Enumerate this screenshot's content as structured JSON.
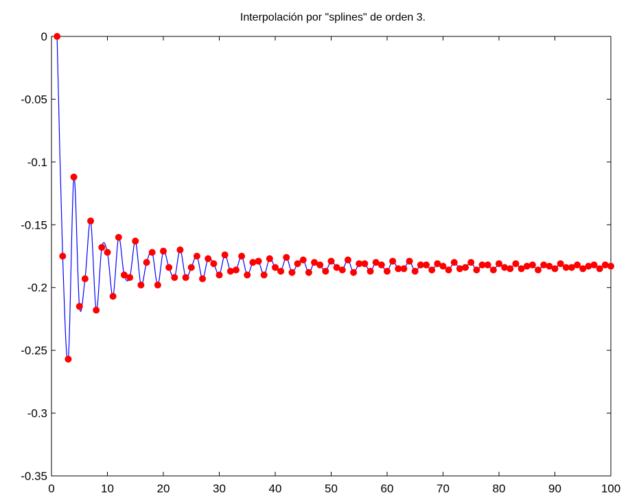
{
  "chart_data": {
    "type": "line",
    "title": "Interpolación por \"splines\" de orden 3.",
    "xlabel": "",
    "ylabel": "",
    "xlim": [
      0,
      100
    ],
    "ylim": [
      -0.35,
      0
    ],
    "grid": false,
    "legend": "none",
    "x_ticks": [
      0,
      10,
      20,
      30,
      40,
      50,
      60,
      70,
      80,
      90,
      100
    ],
    "x_tick_labels": [
      "0",
      "10",
      "20",
      "30",
      "40",
      "50",
      "60",
      "70",
      "80",
      "90",
      "100"
    ],
    "y_ticks": [
      0,
      -0.05,
      -0.1,
      -0.15,
      -0.2,
      -0.25,
      -0.3,
      -0.35
    ],
    "y_tick_labels": [
      "0",
      "-0.05",
      "-0.1",
      "-0.15",
      "-0.2",
      "-0.25",
      "-0.3",
      "-0.35"
    ],
    "series": [
      {
        "style": "spline-curve",
        "color": "#0000ff",
        "x": [
          1,
          2,
          3,
          4,
          5,
          6,
          7,
          8,
          9,
          10,
          11,
          12,
          13,
          14,
          15,
          16,
          17,
          18,
          19,
          20,
          21,
          22,
          23,
          24,
          25,
          26,
          27,
          28,
          29,
          30,
          31,
          32,
          33,
          34,
          35,
          36,
          37,
          38,
          39,
          40,
          41,
          42,
          43,
          44,
          45,
          46,
          47,
          48,
          49,
          50,
          51,
          52,
          53,
          54,
          55,
          56,
          57,
          58,
          59,
          60,
          61,
          62,
          63,
          64,
          65,
          66,
          67,
          68,
          69,
          70,
          71,
          72,
          73,
          74,
          75,
          76,
          77,
          78,
          79,
          80,
          81,
          82,
          83,
          84,
          85,
          86,
          87,
          88,
          89,
          90,
          91,
          92,
          93,
          94,
          95,
          96,
          97,
          98,
          99,
          100
        ],
        "y": [
          0,
          -0.175,
          -0.257,
          -0.112,
          -0.215,
          -0.193,
          -0.147,
          -0.218,
          -0.168,
          -0.172,
          -0.207,
          -0.16,
          -0.19,
          -0.192,
          -0.163,
          -0.198,
          -0.18,
          -0.172,
          -0.198,
          -0.171,
          -0.184,
          -0.192,
          -0.17,
          -0.192,
          -0.184,
          -0.175,
          -0.193,
          -0.177,
          -0.181,
          -0.19,
          -0.174,
          -0.187,
          -0.186,
          -0.175,
          -0.19,
          -0.18,
          -0.179,
          -0.19,
          -0.177,
          -0.184,
          -0.187,
          -0.176,
          -0.188,
          -0.181,
          -0.178,
          -0.188,
          -0.18,
          -0.182,
          -0.187,
          -0.179,
          -0.184,
          -0.186,
          -0.178,
          -0.188,
          -0.181,
          -0.181,
          -0.187,
          -0.18,
          -0.182,
          -0.187,
          -0.179,
          -0.185,
          -0.185,
          -0.179,
          -0.187,
          -0.182,
          -0.182,
          -0.186,
          -0.181,
          -0.183,
          -0.186,
          -0.18,
          -0.185,
          -0.184,
          -0.18,
          -0.186,
          -0.182,
          -0.182,
          -0.186,
          -0.181,
          -0.184,
          -0.185,
          -0.181,
          -0.185,
          -0.183,
          -0.182,
          -0.186,
          -0.182,
          -0.183,
          -0.185,
          -0.181,
          -0.184,
          -0.184,
          -0.182,
          -0.185,
          -0.183,
          -0.182,
          -0.185,
          -0.182,
          -0.183
        ]
      },
      {
        "style": "markers",
        "color": "#ff0000",
        "x": [
          1,
          2,
          3,
          4,
          5,
          6,
          7,
          8,
          9,
          10,
          11,
          12,
          13,
          14,
          15,
          16,
          17,
          18,
          19,
          20,
          21,
          22,
          23,
          24,
          25,
          26,
          27,
          28,
          29,
          30,
          31,
          32,
          33,
          34,
          35,
          36,
          37,
          38,
          39,
          40,
          41,
          42,
          43,
          44,
          45,
          46,
          47,
          48,
          49,
          50,
          51,
          52,
          53,
          54,
          55,
          56,
          57,
          58,
          59,
          60,
          61,
          62,
          63,
          64,
          65,
          66,
          67,
          68,
          69,
          70,
          71,
          72,
          73,
          74,
          75,
          76,
          77,
          78,
          79,
          80,
          81,
          82,
          83,
          84,
          85,
          86,
          87,
          88,
          89,
          90,
          91,
          92,
          93,
          94,
          95,
          96,
          97,
          98,
          99,
          100
        ],
        "y": [
          0,
          -0.175,
          -0.257,
          -0.112,
          -0.215,
          -0.193,
          -0.147,
          -0.218,
          -0.168,
          -0.172,
          -0.207,
          -0.16,
          -0.19,
          -0.192,
          -0.163,
          -0.198,
          -0.18,
          -0.172,
          -0.198,
          -0.171,
          -0.184,
          -0.192,
          -0.17,
          -0.192,
          -0.184,
          -0.175,
          -0.193,
          -0.177,
          -0.181,
          -0.19,
          -0.174,
          -0.187,
          -0.186,
          -0.175,
          -0.19,
          -0.18,
          -0.179,
          -0.19,
          -0.177,
          -0.184,
          -0.187,
          -0.176,
          -0.188,
          -0.181,
          -0.178,
          -0.188,
          -0.18,
          -0.182,
          -0.187,
          -0.179,
          -0.184,
          -0.186,
          -0.178,
          -0.188,
          -0.181,
          -0.181,
          -0.187,
          -0.18,
          -0.182,
          -0.187,
          -0.179,
          -0.185,
          -0.185,
          -0.179,
          -0.187,
          -0.182,
          -0.182,
          -0.186,
          -0.181,
          -0.183,
          -0.186,
          -0.18,
          -0.185,
          -0.184,
          -0.18,
          -0.186,
          -0.182,
          -0.182,
          -0.186,
          -0.181,
          -0.184,
          -0.185,
          -0.181,
          -0.185,
          -0.183,
          -0.182,
          -0.186,
          -0.182,
          -0.183,
          -0.185,
          -0.181,
          -0.184,
          -0.184,
          -0.182,
          -0.185,
          -0.183,
          -0.182,
          -0.185,
          -0.182,
          -0.183
        ]
      }
    ]
  }
}
